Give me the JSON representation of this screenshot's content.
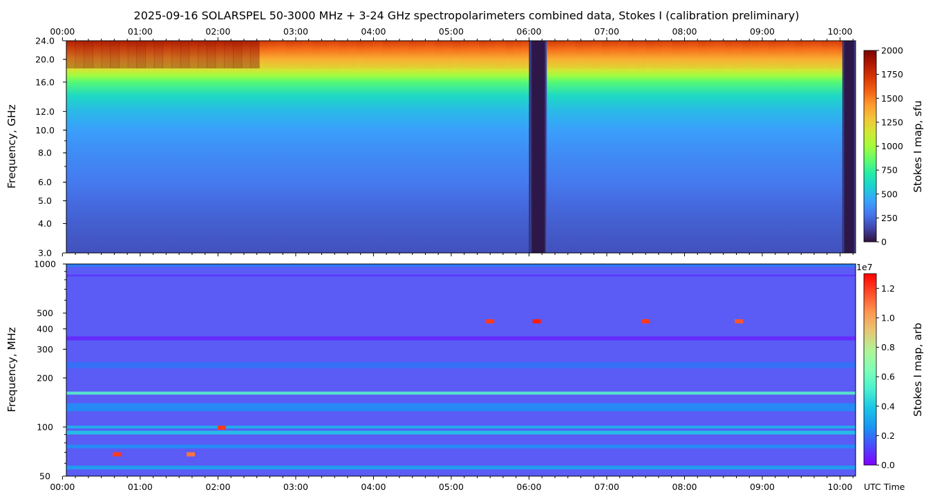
{
  "figure": {
    "title": "2025-09-16  SOLARSPEL  50-3000 MHz  +  3-24 GHz  spectropolarimeters combined data,  Stokes I  (calibration preliminary)",
    "time_axis_label": "UTC Time"
  },
  "chart_data": [
    {
      "type": "heatmap",
      "name": "upper-panel",
      "ylabel": "Frequency, GHz",
      "y_scale": "log",
      "ylim": [
        3.0,
        24.0
      ],
      "yticks": [
        "3.0",
        "4.0",
        "5.0",
        "6.0",
        "8.0",
        "10.0",
        "12.0",
        "16.0",
        "20.0",
        "24.0"
      ],
      "ytick_values": [
        3,
        4,
        5,
        6,
        8,
        10,
        12,
        16,
        20,
        24
      ],
      "xticks": [
        "00:00",
        "01:00",
        "02:00",
        "03:00",
        "04:00",
        "05:00",
        "06:00",
        "07:00",
        "08:00",
        "09:00",
        "10:00"
      ],
      "xtick_hours": [
        0,
        1,
        2,
        3,
        4,
        5,
        6,
        7,
        8,
        9,
        10
      ],
      "xlim_hours": [
        0.05,
        10.2
      ],
      "colorbar": {
        "label": "Stokes I map, sfu",
        "range": [
          0,
          2000
        ],
        "ticks": [
          "0",
          "250",
          "500",
          "750",
          "1000",
          "1250",
          "1500",
          "1750",
          "2000"
        ],
        "tick_values": [
          0,
          250,
          500,
          750,
          1000,
          1250,
          1500,
          1750,
          2000
        ],
        "colormap": "turbo"
      },
      "frequency_profile": [
        {
          "freq": 3.0,
          "value": 180
        },
        {
          "freq": 4.0,
          "value": 220
        },
        {
          "freq": 5.0,
          "value": 260
        },
        {
          "freq": 6.0,
          "value": 300
        },
        {
          "freq": 8.0,
          "value": 360
        },
        {
          "freq": 10.0,
          "value": 420
        },
        {
          "freq": 12.0,
          "value": 500
        },
        {
          "freq": 14.0,
          "value": 620
        },
        {
          "freq": 16.0,
          "value": 830
        },
        {
          "freq": 17.0,
          "value": 980
        },
        {
          "freq": 18.0,
          "value": 1150
        },
        {
          "freq": 20.0,
          "value": 1350
        },
        {
          "freq": 22.0,
          "value": 1550
        },
        {
          "freq": 24.0,
          "value": 1750
        }
      ],
      "data_gaps_hours": [
        [
          6.0,
          6.23
        ],
        [
          10.03,
          10.2
        ]
      ]
    },
    {
      "type": "heatmap",
      "name": "lower-panel",
      "ylabel": "Frequency, MHz",
      "y_scale": "log",
      "ylim": [
        50,
        1000
      ],
      "yticks": [
        "50",
        "100",
        "200",
        "300",
        "400",
        "500",
        "1000"
      ],
      "ytick_values": [
        50,
        100,
        200,
        300,
        400,
        500,
        1000
      ],
      "xticks": [
        "00:00",
        "01:00",
        "02:00",
        "03:00",
        "04:00",
        "05:00",
        "06:00",
        "07:00",
        "08:00",
        "09:00",
        "10:00"
      ],
      "xtick_hours": [
        0,
        1,
        2,
        3,
        4,
        5,
        6,
        7,
        8,
        9,
        10
      ],
      "xlim_hours": [
        0.05,
        10.2
      ],
      "colorbar": {
        "label": "Stokes I map, arb",
        "scale_note": "1e7",
        "range": [
          0.0,
          1.3
        ],
        "ticks": [
          "0.0",
          "0.2",
          "0.4",
          "0.6",
          "0.8",
          "1.0",
          "1.2"
        ],
        "tick_values": [
          0.0,
          0.2,
          0.4,
          0.6,
          0.8,
          1.0,
          1.2
        ],
        "colormap": "rainbow"
      },
      "bands": [
        {
          "freq": [
            960,
            1000
          ],
          "value": 0.22
        },
        {
          "freq": [
            840,
            860
          ],
          "value": 0.08
        },
        {
          "freq": [
            340,
            360
          ],
          "value": 0.06
        },
        {
          "freq": [
            230,
            250
          ],
          "value": 0.2
        },
        {
          "freq": [
            158,
            165
          ],
          "value": 0.55
        },
        {
          "freq": [
            125,
            140
          ],
          "value": 0.25
        },
        {
          "freq": [
            98,
            102
          ],
          "value": 0.35
        },
        {
          "freq": [
            90,
            95
          ],
          "value": 0.4
        },
        {
          "freq": [
            74,
            78
          ],
          "value": 0.25
        },
        {
          "freq": [
            55,
            58
          ],
          "value": 0.3
        }
      ],
      "bursts": [
        {
          "t": 0.7,
          "freq": 68,
          "value": 1.2
        },
        {
          "t": 1.65,
          "freq": 68,
          "value": 1.1
        },
        {
          "t": 2.05,
          "freq": 99,
          "value": 1.2
        },
        {
          "t": 5.5,
          "freq": 445,
          "value": 1.2
        },
        {
          "t": 6.1,
          "freq": 445,
          "value": 1.25
        },
        {
          "t": 7.5,
          "freq": 445,
          "value": 1.2
        },
        {
          "t": 8.7,
          "freq": 445,
          "value": 1.15
        }
      ]
    }
  ]
}
